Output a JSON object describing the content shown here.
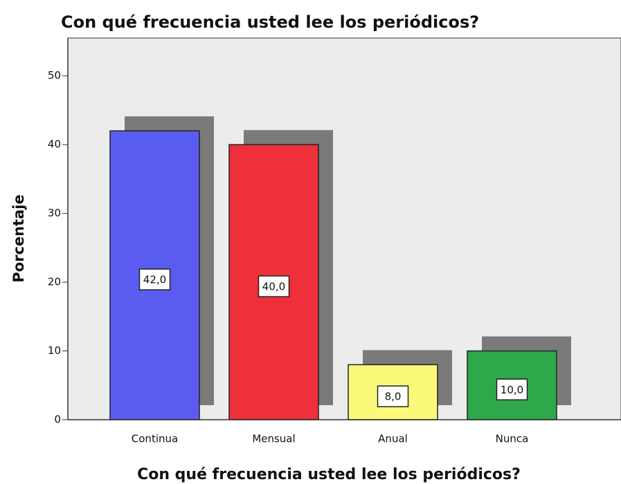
{
  "chart_data": {
    "type": "bar",
    "title": "Con qué frecuencia usted lee los periódicos?",
    "x_label": "Con qué frecuencia usted lee los periódicos?",
    "y_label": "Porcentaje",
    "categories": [
      "Continua",
      "Mensual",
      "Anual",
      "Nunca"
    ],
    "values": [
      42,
      40,
      8,
      10
    ],
    "value_labels": [
      "42,0",
      "40,0",
      "8,0",
      "10,0"
    ],
    "colors": [
      "#5a5cf0",
      "#ef2f3a",
      "#fbf97a",
      "#2ea84a"
    ],
    "ylim": [
      0,
      55.5
    ],
    "yticks": [
      0,
      10,
      20,
      30,
      40,
      50
    ],
    "grid": false
  }
}
